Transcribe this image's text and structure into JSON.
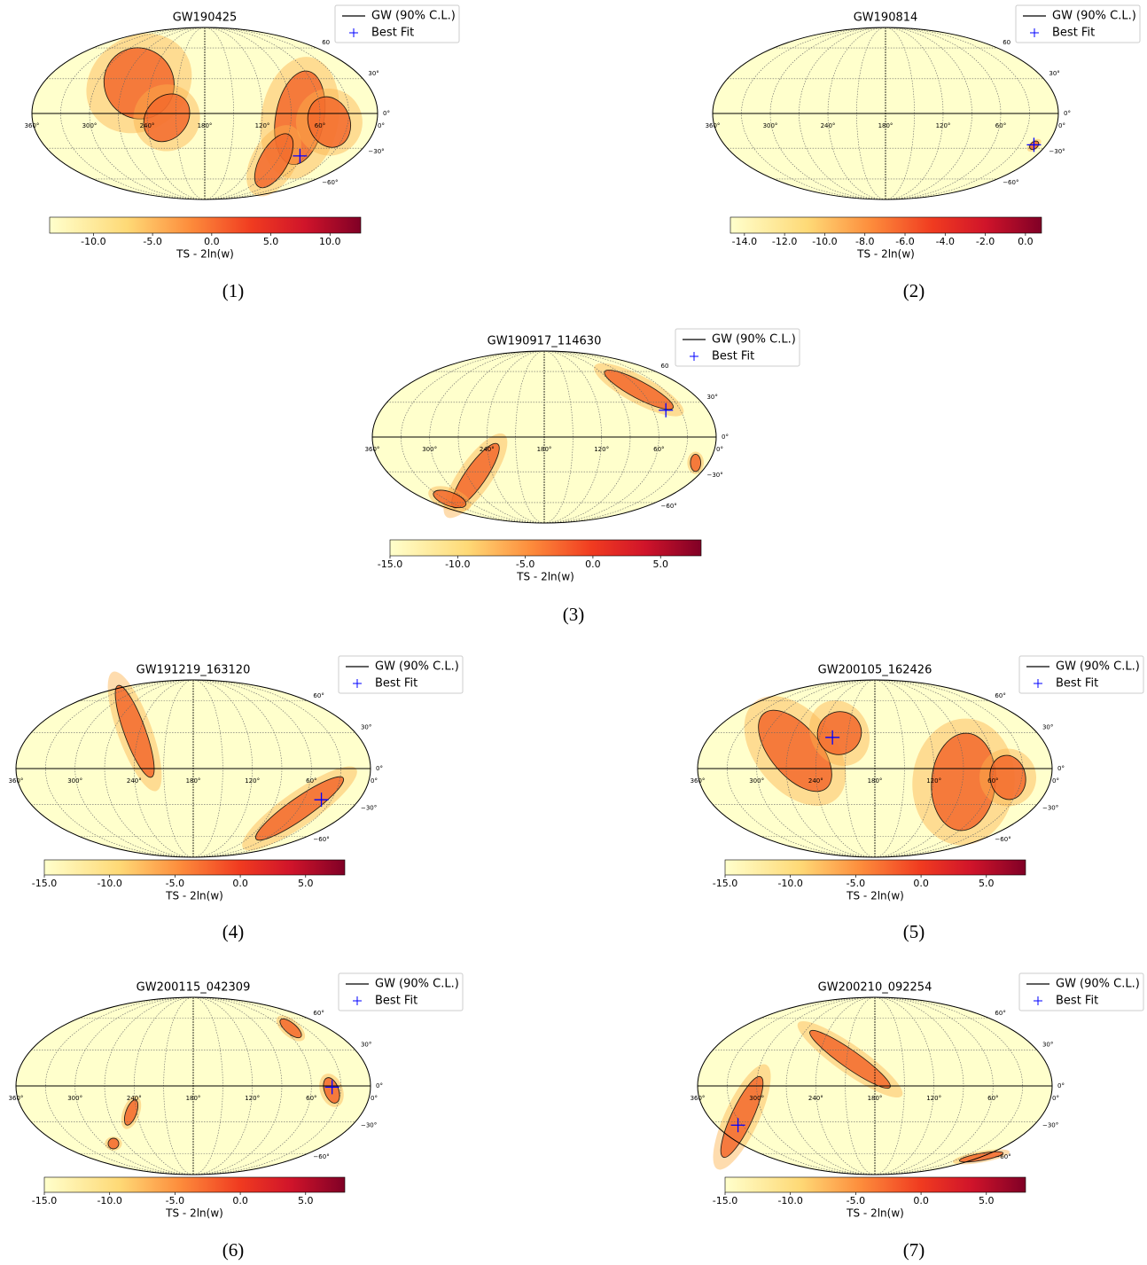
{
  "chart_data": [
    {
      "type": "skymap",
      "title": "GW190425",
      "caption": "(1)",
      "clabel": "TS - 2ln(w)",
      "series": [
        {
          "name": "GW (90% C.L.)",
          "color": "#000000"
        },
        {
          "name": "Best Fit",
          "color": "#0000ff",
          "x": [
            66
          ],
          "values": [
            -37
          ]
        }
      ],
      "xlim": [
        360,
        0
      ],
      "ylim": [
        -90,
        90
      ],
      "xticks": [
        {
          "value": 360,
          "label": "360°"
        },
        {
          "value": 300,
          "label": "300°"
        },
        {
          "value": 240,
          "label": "240°"
        },
        {
          "value": 180,
          "label": "180°"
        },
        {
          "value": 120,
          "label": "120°"
        },
        {
          "value": 60,
          "label": "60°"
        },
        {
          "value": 0,
          "label": "0°"
        }
      ],
      "yticks": [
        {
          "value": 60,
          "label": "60"
        },
        {
          "value": 30,
          "label": "30°"
        },
        {
          "value": 0,
          "label": "0°"
        },
        {
          "value": -30,
          "label": "−30°"
        },
        {
          "value": -60,
          "label": "−60°"
        }
      ],
      "clim": [
        -13.7,
        12.6
      ],
      "cticks": [
        {
          "value": -10,
          "label": "-10.0"
        },
        {
          "value": -5,
          "label": "-5.0"
        },
        {
          "value": 0,
          "label": "0.0"
        },
        {
          "value": 5,
          "label": "5.0"
        },
        {
          "value": 10,
          "label": "10.0"
        }
      ]
    },
    {
      "type": "skymap",
      "title": "GW190814",
      "caption": "(2)",
      "clabel": "TS - 2ln(w)",
      "series": [
        {
          "name": "GW (90% C.L.)",
          "color": "#000000"
        },
        {
          "name": "Best Fit",
          "color": "#0000ff",
          "x": [
            14
          ],
          "values": [
            -27
          ]
        }
      ],
      "xlim": [
        360,
        0
      ],
      "ylim": [
        -90,
        90
      ],
      "xticks": [
        {
          "value": 360,
          "label": "360°"
        },
        {
          "value": 300,
          "label": "300°"
        },
        {
          "value": 240,
          "label": "240°"
        },
        {
          "value": 180,
          "label": "180°"
        },
        {
          "value": 120,
          "label": "120°"
        },
        {
          "value": 60,
          "label": "60°"
        },
        {
          "value": 0,
          "label": "0°"
        }
      ],
      "yticks": [
        {
          "value": 60,
          "label": "60"
        },
        {
          "value": 30,
          "label": "30°"
        },
        {
          "value": 0,
          "label": "0°"
        },
        {
          "value": -30,
          "label": "−30°"
        },
        {
          "value": -60,
          "label": "−60°"
        }
      ],
      "clim": [
        -14.7,
        0.8
      ],
      "cticks": [
        {
          "value": -14,
          "label": "-14.0"
        },
        {
          "value": -12,
          "label": "-12.0"
        },
        {
          "value": -10,
          "label": "-10.0"
        },
        {
          "value": -8,
          "label": "-8.0"
        },
        {
          "value": -6,
          "label": "-6.0"
        },
        {
          "value": -4,
          "label": "-4.0"
        },
        {
          "value": -2,
          "label": "-2.0"
        },
        {
          "value": 0,
          "label": "0.0"
        }
      ]
    },
    {
      "type": "skymap",
      "title": "GW190917_114630",
      "caption": "(3)",
      "clabel": "TS - 2ln(w)",
      "series": [
        {
          "name": "GW (90% C.L.)",
          "color": "#000000"
        },
        {
          "name": "Best Fit",
          "color": "#0000ff",
          "x": [
            46
          ],
          "values": [
            23
          ]
        }
      ],
      "xlim": [
        360,
        0
      ],
      "ylim": [
        -90,
        90
      ],
      "xticks": [
        {
          "value": 360,
          "label": "360°"
        },
        {
          "value": 300,
          "label": "300°"
        },
        {
          "value": 240,
          "label": "240°"
        },
        {
          "value": 180,
          "label": "180°"
        },
        {
          "value": 120,
          "label": "120°"
        },
        {
          "value": 60,
          "label": "60°"
        },
        {
          "value": 0,
          "label": "0°"
        }
      ],
      "yticks": [
        {
          "value": 60,
          "label": "60"
        },
        {
          "value": 30,
          "label": "30°"
        },
        {
          "value": 0,
          "label": "0°"
        },
        {
          "value": -30,
          "label": "−30°"
        },
        {
          "value": -60,
          "label": "−60°"
        }
      ],
      "clim": [
        -15,
        8
      ],
      "cticks": [
        {
          "value": -15,
          "label": "-15.0"
        },
        {
          "value": -10,
          "label": "-10.0"
        },
        {
          "value": -5,
          "label": "-5.0"
        },
        {
          "value": 0,
          "label": "0.0"
        },
        {
          "value": 5,
          "label": "5.0"
        }
      ]
    },
    {
      "type": "skymap",
      "title": "GW191219_163120",
      "caption": "(4)",
      "clabel": "TS - 2ln(w)",
      "series": [
        {
          "name": "GW (90% C.L.)",
          "color": "#000000"
        },
        {
          "name": "Best Fit",
          "color": "#0000ff",
          "x": [
            41
          ],
          "values": [
            -26
          ]
        }
      ],
      "xlim": [
        360,
        0
      ],
      "ylim": [
        -90,
        90
      ],
      "xticks": [
        {
          "value": 360,
          "label": "360°"
        },
        {
          "value": 300,
          "label": "300°"
        },
        {
          "value": 240,
          "label": "240°"
        },
        {
          "value": 180,
          "label": "180°"
        },
        {
          "value": 120,
          "label": "120°"
        },
        {
          "value": 60,
          "label": "60°"
        },
        {
          "value": 0,
          "label": "0°"
        }
      ],
      "yticks": [
        {
          "value": 60,
          "label": "60°"
        },
        {
          "value": 30,
          "label": "30°"
        },
        {
          "value": 0,
          "label": "0°"
        },
        {
          "value": -30,
          "label": "−30°"
        },
        {
          "value": -60,
          "label": "−60°"
        }
      ],
      "clim": [
        -15,
        8
      ],
      "cticks": [
        {
          "value": -15,
          "label": "-15.0"
        },
        {
          "value": -10,
          "label": "-10.0"
        },
        {
          "value": -5,
          "label": "-5.0"
        },
        {
          "value": 0,
          "label": "0.0"
        },
        {
          "value": 5,
          "label": "5.0"
        }
      ]
    },
    {
      "type": "skymap",
      "title": "GW200105_162426",
      "caption": "(5)",
      "clabel": "TS - 2ln(w)",
      "series": [
        {
          "name": "GW (90% C.L.)",
          "color": "#000000"
        },
        {
          "name": "Best Fit",
          "color": "#0000ff",
          "x": [
            226
          ],
          "values": [
            26
          ]
        }
      ],
      "xlim": [
        360,
        0
      ],
      "ylim": [
        -90,
        90
      ],
      "xticks": [
        {
          "value": 360,
          "label": "360°"
        },
        {
          "value": 300,
          "label": "300°"
        },
        {
          "value": 240,
          "label": "240°"
        },
        {
          "value": 180,
          "label": "180°"
        },
        {
          "value": 120,
          "label": "120°"
        },
        {
          "value": 60,
          "label": "60°"
        },
        {
          "value": 0,
          "label": "0°"
        }
      ],
      "yticks": [
        {
          "value": 60,
          "label": "60°"
        },
        {
          "value": 30,
          "label": "30°"
        },
        {
          "value": 0,
          "label": "0°"
        },
        {
          "value": -30,
          "label": "−30°"
        },
        {
          "value": -60,
          "label": "−60°"
        }
      ],
      "clim": [
        -15,
        8
      ],
      "cticks": [
        {
          "value": -15,
          "label": "-15.0"
        },
        {
          "value": -10,
          "label": "-10.0"
        },
        {
          "value": -5,
          "label": "-5.0"
        },
        {
          "value": 0,
          "label": "0.0"
        },
        {
          "value": 5,
          "label": "5.0"
        }
      ]
    },
    {
      "type": "skymap",
      "title": "GW200115_042309",
      "caption": "(6)",
      "clabel": "TS - 2ln(w)",
      "series": [
        {
          "name": "GW (90% C.L.)",
          "color": "#000000"
        },
        {
          "name": "Best Fit",
          "color": "#0000ff",
          "x": [
            39
          ],
          "values": [
            -1
          ]
        }
      ],
      "xlim": [
        360,
        0
      ],
      "ylim": [
        -90,
        90
      ],
      "xticks": [
        {
          "value": 360,
          "label": "360°"
        },
        {
          "value": 300,
          "label": "300°"
        },
        {
          "value": 240,
          "label": "240°"
        },
        {
          "value": 180,
          "label": "180°"
        },
        {
          "value": 120,
          "label": "120°"
        },
        {
          "value": 60,
          "label": "60°"
        },
        {
          "value": 0,
          "label": "0°"
        }
      ],
      "yticks": [
        {
          "value": 60,
          "label": "60°"
        },
        {
          "value": 30,
          "label": "30°"
        },
        {
          "value": 0,
          "label": "0°"
        },
        {
          "value": -30,
          "label": "−30°"
        },
        {
          "value": -60,
          "label": "−60°"
        }
      ],
      "clim": [
        -15,
        8
      ],
      "cticks": [
        {
          "value": -15,
          "label": "-15.0"
        },
        {
          "value": -10,
          "label": "-10.0"
        },
        {
          "value": -5,
          "label": "-5.0"
        },
        {
          "value": 0,
          "label": "0.0"
        },
        {
          "value": 5,
          "label": "5.0"
        }
      ]
    },
    {
      "type": "skymap",
      "title": "GW200210_092254",
      "caption": "(7)",
      "clabel": "TS - 2ln(w)",
      "series": [
        {
          "name": "GW (90% C.L.)",
          "color": "#000000"
        },
        {
          "name": "Best Fit",
          "color": "#0000ff",
          "x": [
            335
          ],
          "values": [
            -33
          ]
        }
      ],
      "xlim": [
        360,
        0
      ],
      "ylim": [
        -90,
        90
      ],
      "xticks": [
        {
          "value": 360,
          "label": "360°"
        },
        {
          "value": 300,
          "label": "300°"
        },
        {
          "value": 240,
          "label": "240°"
        },
        {
          "value": 180,
          "label": "180°"
        },
        {
          "value": 120,
          "label": "120°"
        },
        {
          "value": 60,
          "label": "60°"
        },
        {
          "value": 0,
          "label": "0°"
        }
      ],
      "yticks": [
        {
          "value": 60,
          "label": "60°"
        },
        {
          "value": 30,
          "label": "30°"
        },
        {
          "value": 0,
          "label": "0°"
        },
        {
          "value": -30,
          "label": "−30°"
        },
        {
          "value": -60,
          "label": "−60°"
        }
      ],
      "clim": [
        -15,
        8
      ],
      "cticks": [
        {
          "value": -15,
          "label": "-15.0"
        },
        {
          "value": -10,
          "label": "-10.0"
        },
        {
          "value": -5,
          "label": "-5.0"
        },
        {
          "value": 0,
          "label": "0.0"
        },
        {
          "value": 5,
          "label": "5.0"
        }
      ]
    }
  ]
}
